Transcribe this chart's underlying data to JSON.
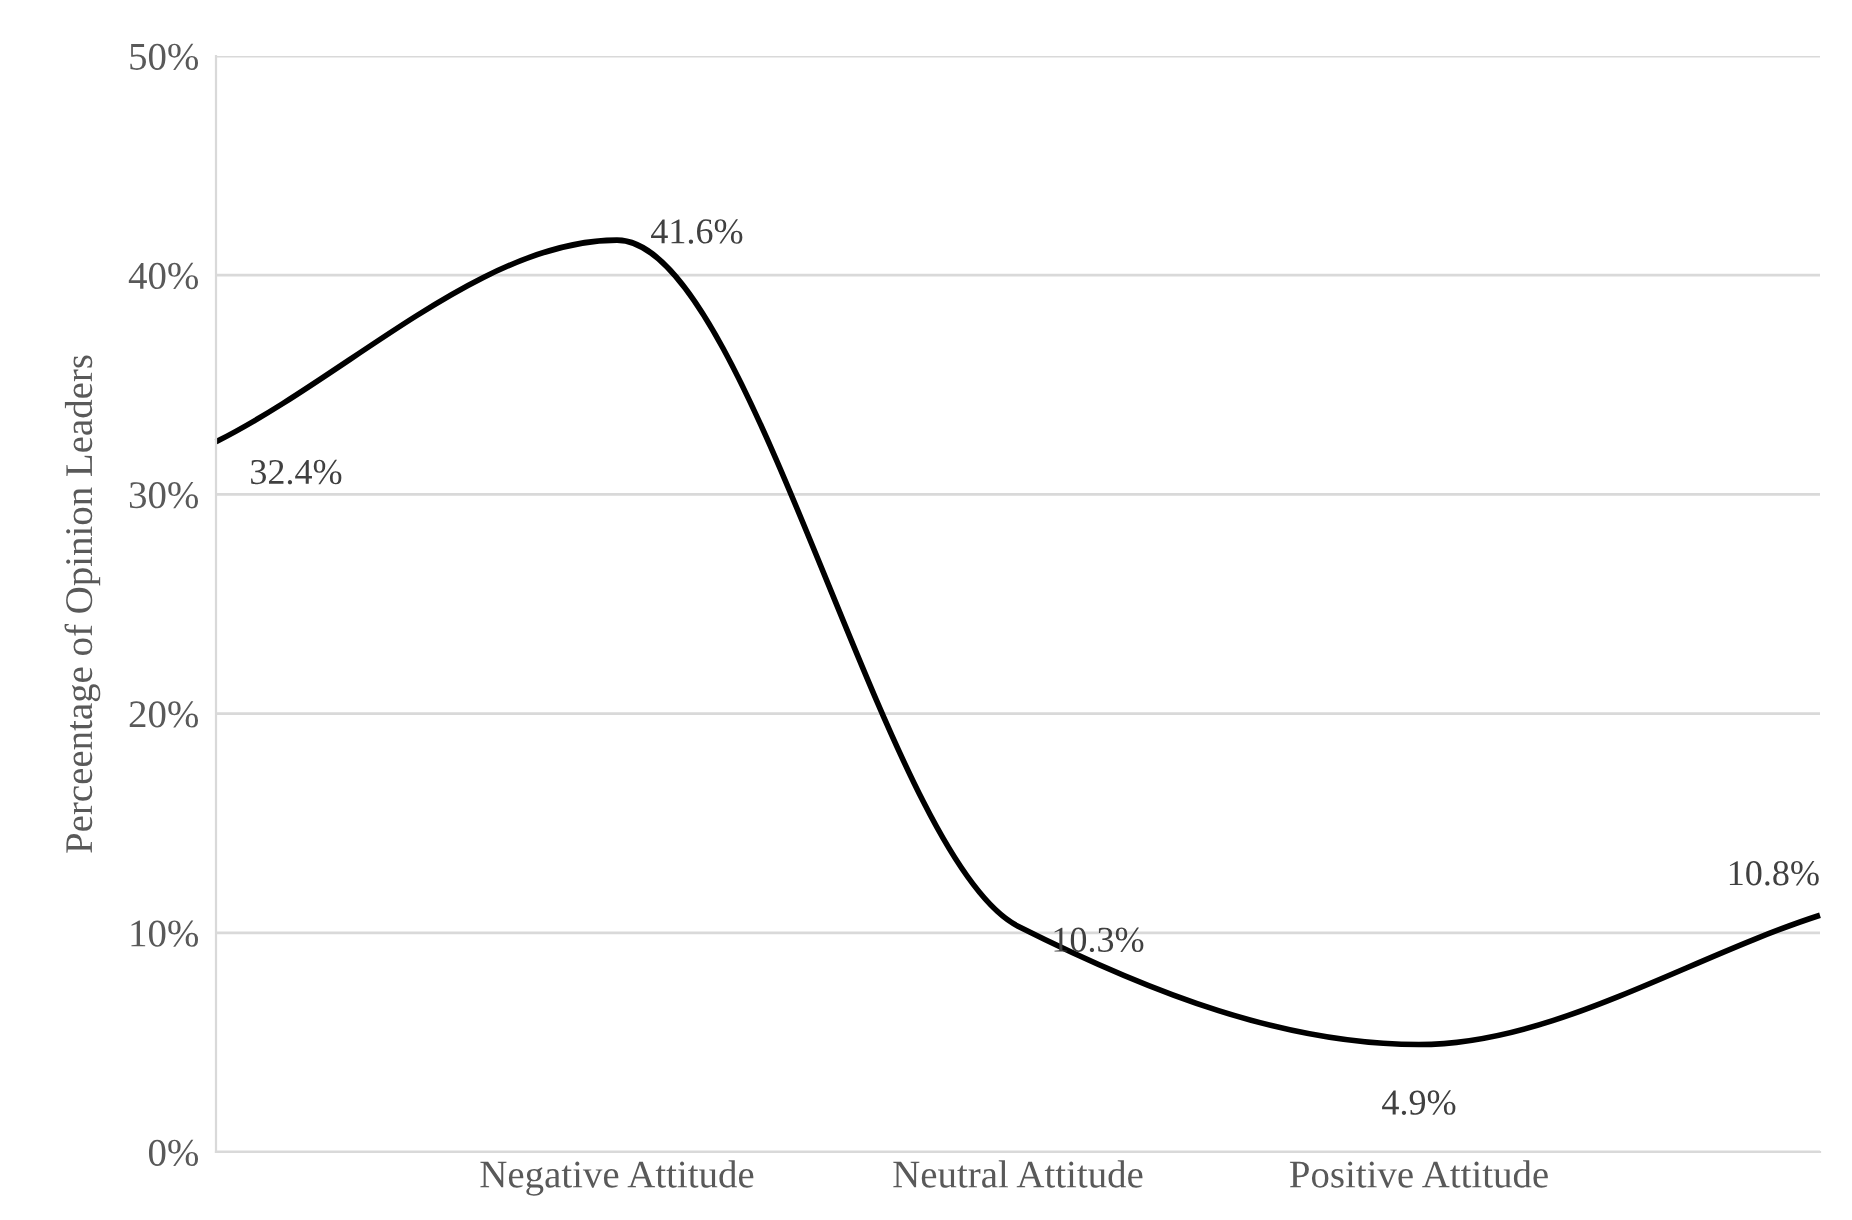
{
  "chart_data": {
    "type": "line",
    "ylabel": "Perceentage of Opinion Leaders",
    "categories": [
      null,
      "Negative Attitude",
      "Neutral Attitude",
      "Positive Attitude",
      null
    ],
    "values": [
      32.4,
      41.6,
      10.3,
      4.9,
      10.8
    ],
    "color": "#000000",
    "value_labels": [
      "32.4%",
      "41.6%",
      "10.3%",
      "4.9%",
      "10.8%"
    ],
    "ylim": [
      0,
      50
    ],
    "yticks": [
      {
        "value": 0,
        "label": "0%"
      },
      {
        "value": 10,
        "label": "10%"
      },
      {
        "value": 20,
        "label": "20%"
      },
      {
        "value": 30,
        "label": "30%"
      },
      {
        "value": 40,
        "label": "40%"
      },
      {
        "value": 50,
        "label": "50%"
      }
    ],
    "grid": "y",
    "marker": "none",
    "line_style": "solid",
    "legend": false
  }
}
